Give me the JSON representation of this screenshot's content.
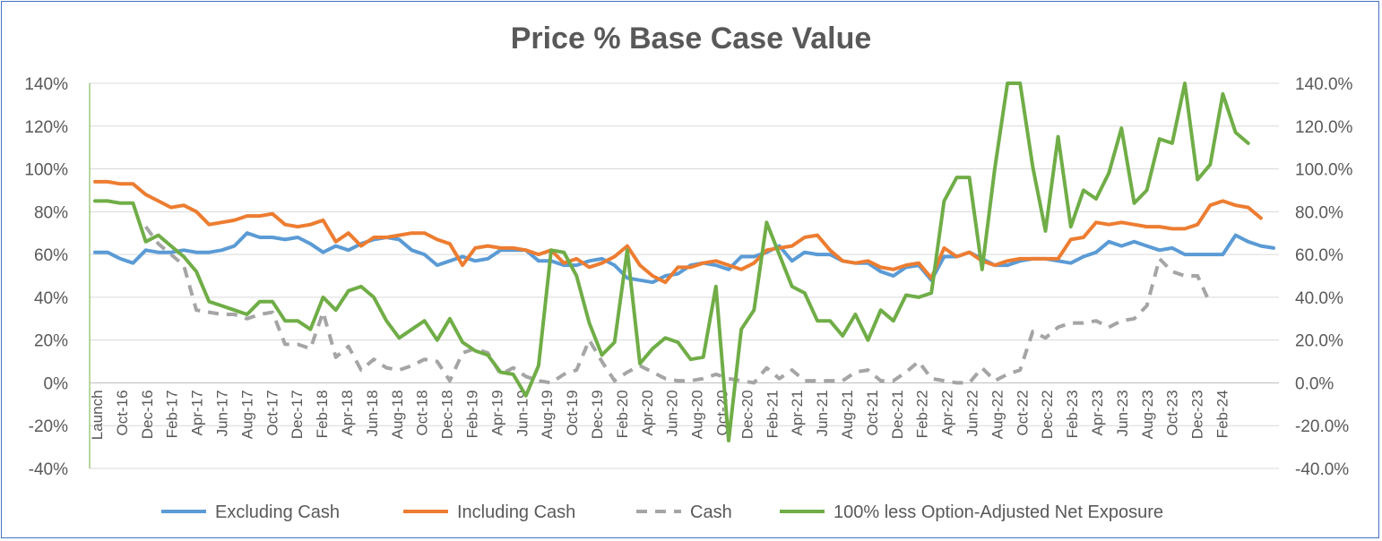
{
  "chart_data": {
    "type": "line",
    "title": "Price % Base Case Value",
    "xlabel": "",
    "ylabel": "",
    "ylim": [
      -40,
      140
    ],
    "y_ticks_left": [
      "140%",
      "120%",
      "100%",
      "80%",
      "60%",
      "40%",
      "20%",
      "0%",
      "-20%",
      "-40%"
    ],
    "y_ticks_right": [
      "140.0%",
      "120.0%",
      "100.0%",
      "80.0%",
      "60.0%",
      "40.0%",
      "20.0%",
      "0.0%",
      "-20.0%",
      "-40.0%"
    ],
    "x_ticks": [
      "Launch",
      "Oct-16",
      "Dec-16",
      "Feb-17",
      "Apr-17",
      "Jun-17",
      "Aug-17",
      "Oct-17",
      "Dec-17",
      "Feb-18",
      "Apr-18",
      "Jun-18",
      "Aug-18",
      "Oct-18",
      "Dec-18",
      "Feb-19",
      "Apr-19",
      "Jun-19",
      "Aug-19",
      "Oct-19",
      "Dec-19",
      "Feb-20",
      "Apr-20",
      "Jun-20",
      "Aug-20",
      "Oct-20",
      "Dec-20",
      "Feb-21",
      "Apr-21",
      "Jun-21",
      "Aug-21",
      "Oct-21",
      "Dec-21",
      "Feb-22",
      "Apr-22",
      "Jun-22",
      "Aug-22",
      "Oct-22",
      "Dec-22",
      "Feb-23",
      "Apr-23",
      "Jun-23",
      "Aug-23",
      "Oct-23",
      "Dec-23",
      "Feb-24"
    ],
    "series": [
      {
        "name": "Excluding Cash",
        "color": "#5b9bd5",
        "dash": false,
        "values": [
          61,
          61,
          58,
          56,
          62,
          61,
          61,
          62,
          61,
          61,
          62,
          64,
          70,
          68,
          68,
          67,
          68,
          65,
          61,
          64,
          62,
          65,
          67,
          68,
          67,
          62,
          60,
          55,
          57,
          59,
          57,
          58,
          62,
          62,
          62,
          57,
          57,
          55,
          55,
          57,
          58,
          55,
          49,
          48,
          47,
          50,
          51,
          55,
          56,
          55,
          53,
          59,
          59,
          61,
          64,
          57,
          61,
          60,
          60,
          57,
          56,
          56,
          52,
          50,
          54,
          55,
          48,
          59,
          59,
          61,
          58,
          55,
          55,
          57,
          58,
          58,
          57,
          56,
          59,
          61,
          66,
          64,
          66,
          64,
          62,
          63,
          60,
          60,
          60,
          60,
          69,
          66,
          64,
          63
        ]
      },
      {
        "name": "Including Cash",
        "color": "#ed7d31",
        "dash": false,
        "values": [
          94,
          94,
          93,
          93,
          88,
          85,
          82,
          83,
          80,
          74,
          75,
          76,
          78,
          78,
          79,
          74,
          73,
          74,
          76,
          66,
          70,
          64,
          68,
          68,
          69,
          70,
          70,
          67,
          65,
          55,
          63,
          64,
          63,
          63,
          62,
          60,
          62,
          56,
          58,
          54,
          56,
          59,
          64,
          55,
          50,
          47,
          54,
          54,
          56,
          57,
          55,
          53,
          56,
          62,
          63,
          64,
          68,
          69,
          62,
          57,
          56,
          57,
          54,
          53,
          55,
          56,
          49,
          63,
          59,
          61,
          57,
          55,
          57,
          58,
          58,
          58,
          58,
          67,
          68,
          75,
          74,
          75,
          74,
          73,
          73,
          72,
          72,
          74,
          83,
          85,
          83,
          82,
          77
        ]
      },
      {
        "name": "Cash",
        "color": "#a5a5a5",
        "dash": true,
        "values": [
          null,
          null,
          null,
          null,
          73,
          65,
          60,
          55,
          34,
          33,
          32,
          32,
          30,
          32,
          33,
          18,
          18,
          16,
          33,
          12,
          17,
          6,
          11,
          7,
          6,
          8,
          11,
          10,
          1,
          14,
          16,
          14,
          4,
          7,
          3,
          1,
          0,
          4,
          6,
          20,
          10,
          1,
          5,
          8,
          5,
          2,
          1,
          1,
          2,
          4,
          2,
          1,
          0,
          7,
          2,
          6,
          1,
          1,
          1,
          1,
          5,
          6,
          1,
          1,
          5,
          10,
          2,
          1,
          0,
          0,
          7,
          1,
          4,
          6,
          24,
          21,
          26,
          28,
          28,
          29,
          26,
          29,
          30,
          36,
          58,
          52,
          50,
          50,
          37
        ]
      },
      {
        "name": "100% less  Option-Adjusted Net Exposure",
        "color": "#70ad47",
        "dash": false,
        "values": [
          85,
          85,
          84,
          84,
          66,
          69,
          64,
          59,
          52,
          38,
          36,
          34,
          32,
          38,
          38,
          29,
          29,
          25,
          40,
          34,
          43,
          45,
          40,
          29,
          21,
          25,
          29,
          20,
          30,
          19,
          15,
          13,
          5,
          4,
          -6,
          8,
          62,
          61,
          50,
          28,
          13,
          19,
          62,
          9,
          16,
          21,
          19,
          11,
          12,
          45,
          -27,
          25,
          34,
          75,
          60,
          45,
          42,
          29,
          29,
          22,
          32,
          20,
          34,
          29,
          41,
          40,
          42,
          85,
          96,
          96,
          53,
          100,
          142,
          140,
          101,
          71,
          115,
          73,
          90,
          86,
          98,
          119,
          84,
          90,
          114,
          112,
          140,
          95,
          102,
          135,
          117,
          112
        ]
      }
    ]
  }
}
